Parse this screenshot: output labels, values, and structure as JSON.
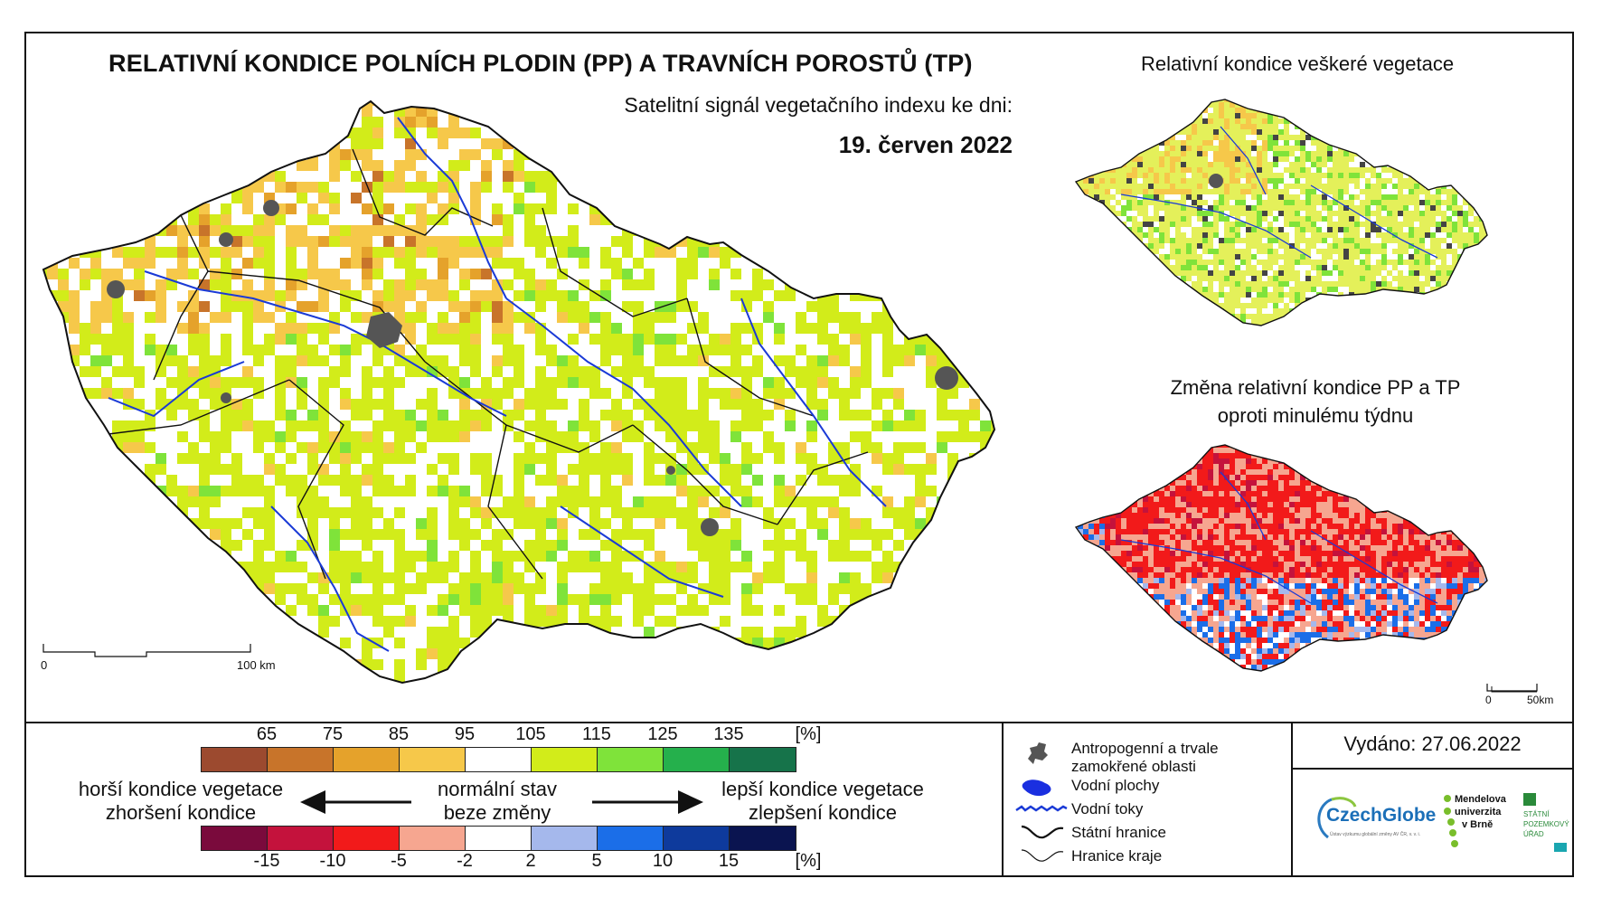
{
  "title": "RELATIVNÍ KONDICE POLNÍCH PLODIN (PP) A TRAVNÍCH POROSTŮ (TP)",
  "subtitle": "Satelitní signál vegetačního indexu ke dni:",
  "date": "19. červen 2022",
  "inset_top_title": "Relativní kondice veškeré vegetace",
  "inset_bottom_title_line1": "Změna relativní kondice PP a TP",
  "inset_bottom_title_line2": "oproti minulému týdnu",
  "main_scale": {
    "start": "0",
    "end": "100 km"
  },
  "inset_scale": {
    "start": "0",
    "end": "50km"
  },
  "legend_condition": {
    "ticks": [
      "65",
      "75",
      "85",
      "95",
      "105",
      "115",
      "125",
      "135",
      "[%]"
    ],
    "colors": [
      "#9c4a2f",
      "#c8742a",
      "#e5a22b",
      "#f6c84a",
      "#ffffff",
      "#d2ec1a",
      "#7fe33a",
      "#25b04c",
      "#16734a"
    ]
  },
  "legend_change": {
    "ticks": [
      "-15",
      "-10",
      "-5",
      "-2",
      "2",
      "5",
      "10",
      "15",
      "[%]"
    ],
    "colors": [
      "#7a0a3c",
      "#c4123c",
      "#f21a1a",
      "#f6a690",
      "#ffffff",
      "#a5b8ec",
      "#1b6ee8",
      "#0e3a9c",
      "#0a1450"
    ]
  },
  "labels": {
    "worse_line1": "horší kondice vegetace",
    "worse_line2": "zhoršení kondice",
    "normal_line1": "normální stav",
    "normal_line2": "beze změny",
    "better_line1": "lepší kondice vegetace",
    "better_line2": "zlepšení kondice"
  },
  "map_legend": {
    "anthro_line1": "Antropogenní a trvale",
    "anthro_line2": "zamokřené oblasti",
    "water_bodies": "Vodní plochy",
    "rivers": "Vodní toky",
    "state_border": "Státní hranice",
    "region_border": "Hranice kraje"
  },
  "issued": "Vydáno: 27.06.2022",
  "logos": {
    "czechglobe": "CzechGlobe",
    "czechglobe_sub": "Ústav výzkumu globální změny AV ČR, v. v. i.",
    "mendel_line1": "Mendelova",
    "mendel_line2": "univerzita",
    "mendel_line3": "v Brně",
    "spu_line1": "STÁTNÍ",
    "spu_line2": "POZEMKOVÝ",
    "spu_line3": "ÚŘAD"
  },
  "colors": {
    "river": "#1a3ad6",
    "urban": "#555555",
    "border": "#111111"
  }
}
